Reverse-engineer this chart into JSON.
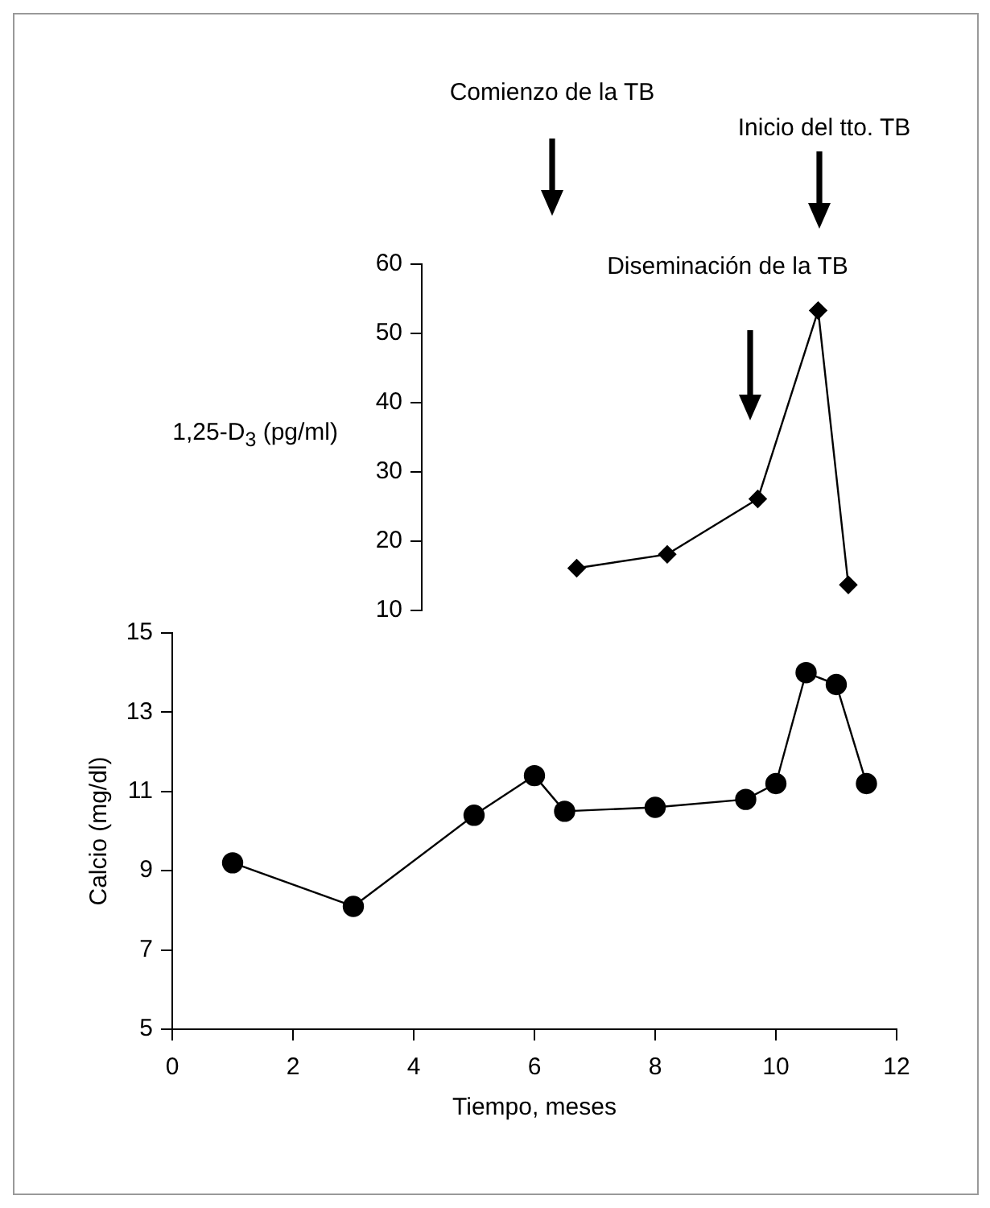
{
  "chart_data": [
    {
      "type": "line",
      "x": [
        6.7,
        8.2,
        9.7,
        10.7,
        11.2
      ],
      "series": [
        {
          "color": "#000000",
          "values": [
            16.1,
            18.1,
            26.1,
            53.3,
            13.7
          ]
        }
      ],
      "ylabel": "1,25-D$_{3}$ (pg/ml)",
      "xlim": [
        0,
        12
      ],
      "ylim": [
        10,
        60
      ],
      "yticks": [
        10,
        20,
        30,
        40,
        50,
        60
      ],
      "tick_labels": "y",
      "marker": "diamond",
      "line_style": "solid",
      "grid": false,
      "legend": false,
      "annotations": [
        "Comienzo de la TB",
        "Diseminación de la TB",
        "Inicio del tto. TB"
      ]
    },
    {
      "type": "line",
      "x": [
        1,
        3,
        5,
        6,
        6.5,
        8,
        9.5,
        10,
        10.5,
        11,
        11.5
      ],
      "series": [
        {
          "color": "#000000",
          "values": [
            9.2,
            8.1,
            10.4,
            11.4,
            10.5,
            10.6,
            10.8,
            11.2,
            14.0,
            13.7,
            11.2
          ]
        }
      ],
      "xlabel": "Tiempo, meses",
      "ylabel": "Calcio (mg/dl)",
      "xlim": [
        0,
        12
      ],
      "xticks": [
        0,
        2,
        4,
        6,
        8,
        10,
        12
      ],
      "ylim": [
        5,
        15
      ],
      "yticks": [
        5,
        7,
        9,
        11,
        13,
        15
      ],
      "marker": "circle",
      "line_style": "solid",
      "grid": false,
      "legend": false
    }
  ]
}
